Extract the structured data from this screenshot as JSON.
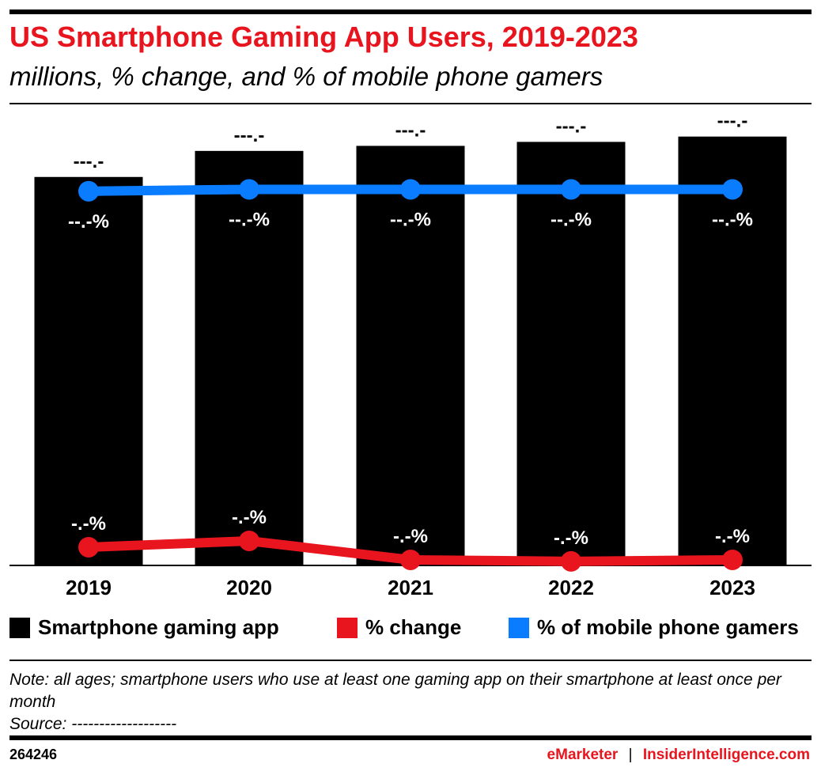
{
  "title": "US Smartphone Gaming App Users, 2019-2023",
  "subtitle": "millions, % change, and % of mobile phone gamers",
  "chart_data": {
    "type": "bar+line",
    "categories": [
      "2019",
      "2020",
      "2021",
      "2022",
      "2023"
    ],
    "series": [
      {
        "name": "Smartphone gaming app",
        "kind": "bar",
        "color": "#000000",
        "values": [
          146.2,
          156.0,
          157.9,
          159.4,
          161.4
        ],
        "labels": [
          "---.-",
          "---.-",
          "---.-",
          "---.-",
          "---.-"
        ]
      },
      {
        "name": "% change",
        "kind": "line",
        "color": "#e8141e",
        "values": [
          4.9,
          6.6,
          1.5,
          1.1,
          1.5
        ],
        "labels": [
          "-.-%",
          "-.-%",
          "-.-%",
          "-.-%",
          "-.-%"
        ]
      },
      {
        "name": "% of mobile phone gamers",
        "kind": "line",
        "color": "#0a7cff",
        "values": [
          80.2,
          80.6,
          80.6,
          80.6,
          80.6
        ],
        "labels": [
          "--.-%",
          "--.-%",
          "--.-%",
          "--.-%",
          "--.-%"
        ]
      }
    ],
    "xlabel": "",
    "ylabel": "",
    "grid": false,
    "legend": "bottom"
  },
  "legend": [
    "Smartphone gaming app",
    "% change",
    "% of mobile phone gamers"
  ],
  "note": "Note: all ages; smartphone users who use at least one gaming app on their smartphone at least once per month",
  "source": "Source: -------------------",
  "footer": {
    "id": "264246",
    "brand1": "eMarketer",
    "sep": "|",
    "brand2": "InsiderIntelligence.com"
  }
}
